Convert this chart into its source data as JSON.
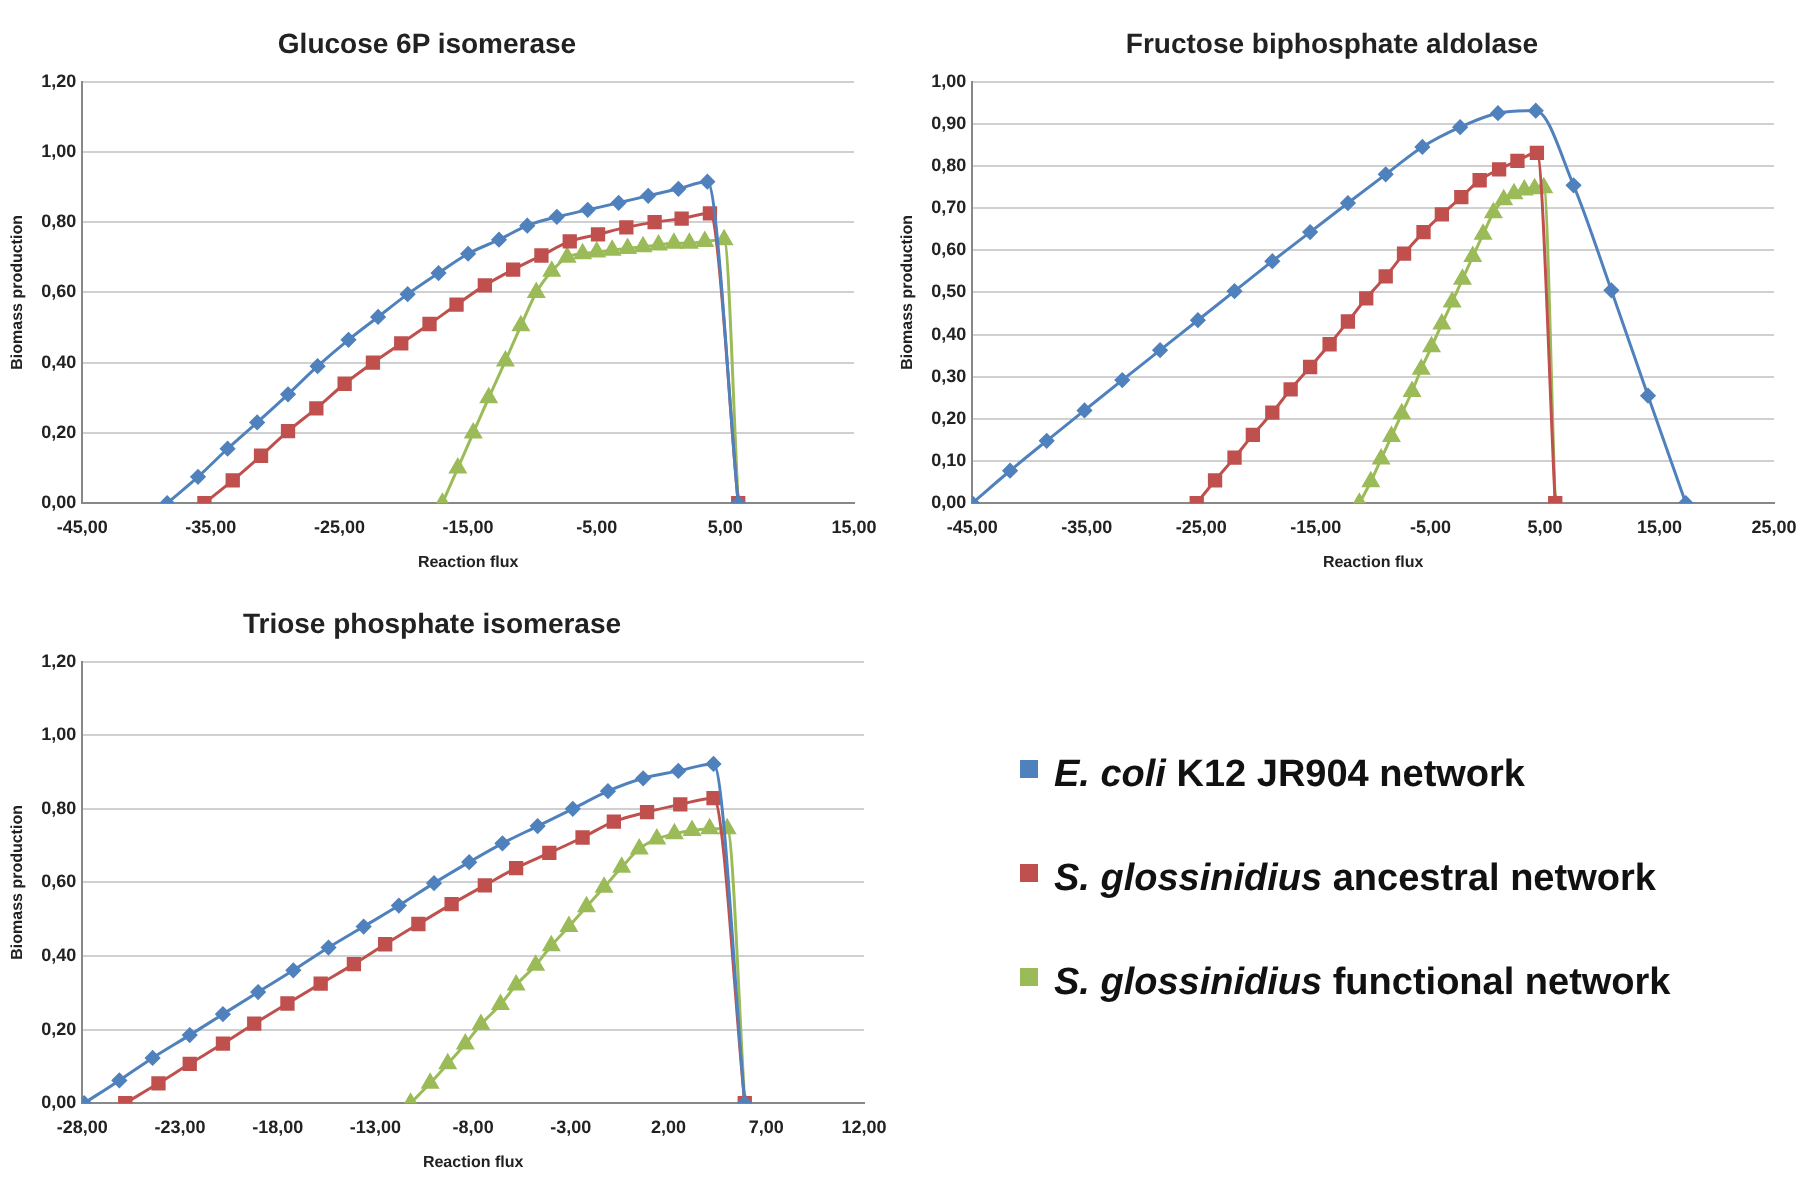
{
  "chart_data": [
    {
      "type": "line",
      "title": "Glucose 6P isomerase",
      "xlabel": "Reaction flux",
      "ylabel": "Biomass production",
      "xlim": [
        -45,
        15
      ],
      "xticks": [
        {
          "value": -45,
          "label": "-45,00"
        },
        {
          "value": -35,
          "label": "-35,00"
        },
        {
          "value": -25,
          "label": "-25,00"
        },
        {
          "value": -15,
          "label": "-15,00"
        },
        {
          "value": -5,
          "label": "-5,00"
        },
        {
          "value": 5,
          "label": "5,00"
        },
        {
          "value": 15,
          "label": "15,00"
        }
      ],
      "ylim": [
        0,
        1.2
      ],
      "yticks": [
        {
          "value": 0,
          "label": "0,00"
        },
        {
          "value": 0.2,
          "label": "0,20"
        },
        {
          "value": 0.4,
          "label": "0,40"
        },
        {
          "value": 0.6,
          "label": "0,60"
        },
        {
          "value": 0.8,
          "label": "0,80"
        },
        {
          "value": 1,
          "label": "1,00"
        },
        {
          "value": 1.2,
          "label": "1,20"
        }
      ],
      "grid": "y",
      "line_style": "solid",
      "series": [
        {
          "color": "#4f81bd",
          "marker": "diamond",
          "x": [
            -38.4,
            -36.0,
            -33.7,
            -31.4,
            -29.0,
            -26.7,
            -24.3,
            -22.0,
            -19.7,
            -17.3,
            -15.0,
            -12.6,
            -10.4,
            -8.1,
            -5.7,
            -3.3,
            -1.0,
            1.35,
            3.6,
            6.0
          ],
          "values": [
            0,
            0.075,
            0.155,
            0.23,
            0.31,
            0.39,
            0.465,
            0.53,
            0.595,
            0.655,
            0.71,
            0.75,
            0.79,
            0.815,
            0.835,
            0.855,
            0.875,
            0.895,
            0.915,
            0
          ]
        },
        {
          "color": "#c0504d",
          "marker": "square",
          "x": [
            -35.5,
            -33.3,
            -31.1,
            -29.0,
            -26.8,
            -24.6,
            -22.4,
            -20.2,
            -18.0,
            -15.9,
            -13.7,
            -11.5,
            -9.3,
            -7.1,
            -4.9,
            -2.7,
            -0.5,
            1.6,
            3.8,
            6.0
          ],
          "values": [
            0,
            0.065,
            0.135,
            0.205,
            0.27,
            0.34,
            0.4,
            0.455,
            0.51,
            0.565,
            0.62,
            0.665,
            0.705,
            0.745,
            0.765,
            0.785,
            0.8,
            0.81,
            0.825,
            0
          ]
        },
        {
          "color": "#9bbb59",
          "marker": "triangle",
          "x": [
            -17.0,
            -15.8,
            -14.6,
            -13.4,
            -12.1,
            -10.9,
            -9.7,
            -8.5,
            -7.3,
            -6.1,
            -5.0,
            -3.8,
            -2.6,
            -1.4,
            -0.2,
            1.0,
            2.2,
            3.4,
            4.9,
            6.0
          ],
          "values": [
            0,
            0.1,
            0.2,
            0.3,
            0.405,
            0.505,
            0.6,
            0.66,
            0.7,
            0.71,
            0.715,
            0.72,
            0.725,
            0.73,
            0.735,
            0.74,
            0.74,
            0.745,
            0.75,
            0
          ]
        }
      ]
    },
    {
      "type": "line",
      "title": "Fructose biphosphate aldolase",
      "xlabel": "Reaction flux",
      "ylabel": "Biomass production",
      "xlim": [
        -45,
        25
      ],
      "xticks": [
        {
          "value": -45,
          "label": "-45,00"
        },
        {
          "value": -35,
          "label": "-35,00"
        },
        {
          "value": -25,
          "label": "-25,00"
        },
        {
          "value": -15,
          "label": "-15,00"
        },
        {
          "value": -5,
          "label": "-5,00"
        },
        {
          "value": 5,
          "label": "5,00"
        },
        {
          "value": 15,
          "label": "15,00"
        },
        {
          "value": 25,
          "label": "25,00"
        }
      ],
      "ylim": [
        0,
        1
      ],
      "yticks": [
        {
          "value": 0,
          "label": "0,00"
        },
        {
          "value": 0.1,
          "label": "0,10"
        },
        {
          "value": 0.2,
          "label": "0,20"
        },
        {
          "value": 0.3,
          "label": "0,30"
        },
        {
          "value": 0.4,
          "label": "0,40"
        },
        {
          "value": 0.5,
          "label": "0,50"
        },
        {
          "value": 0.6,
          "label": "0,60"
        },
        {
          "value": 0.7,
          "label": "0,70"
        },
        {
          "value": 0.8,
          "label": "0,80"
        },
        {
          "value": 0.9,
          "label": "0,90"
        },
        {
          "value": 1,
          "label": "1,00"
        }
      ],
      "grid": "y",
      "line_style": "solid",
      "series": [
        {
          "color": "#4f81bd",
          "marker": "diamond",
          "x": [
            -45,
            -41.7,
            -38.5,
            -35.2,
            -31.9,
            -28.6,
            -25.3,
            -22.1,
            -18.8,
            -15.5,
            -12.2,
            -8.9,
            -5.7,
            -2.4,
            0.9,
            4.2,
            7.5,
            10.8,
            14.0,
            17.3
          ],
          "values": [
            0,
            0.077,
            0.148,
            0.22,
            0.292,
            0.363,
            0.434,
            0.503,
            0.574,
            0.643,
            0.712,
            0.78,
            0.845,
            0.892,
            0.925,
            0.931,
            0.754,
            0.505,
            0.255,
            0
          ]
        },
        {
          "color": "#c0504d",
          "marker": "square",
          "x": [
            -25.4,
            -23.8,
            -22.1,
            -20.5,
            -18.8,
            -17.2,
            -15.5,
            -13.8,
            -12.2,
            -10.6,
            -8.9,
            -7.3,
            -5.6,
            -4.0,
            -2.3,
            -0.7,
            1.0,
            2.6,
            4.3,
            5.9
          ],
          "values": [
            0,
            0.054,
            0.108,
            0.162,
            0.215,
            0.27,
            0.323,
            0.377,
            0.431,
            0.486,
            0.538,
            0.592,
            0.643,
            0.685,
            0.726,
            0.766,
            0.792,
            0.812,
            0.831,
            0
          ]
        },
        {
          "color": "#9bbb59",
          "marker": "triangle",
          "x": [
            -11.2,
            -10.2,
            -9.3,
            -8.4,
            -7.5,
            -6.6,
            -5.8,
            -4.9,
            -4.0,
            -3.1,
            -2.2,
            -1.3,
            -0.4,
            0.5,
            1.4,
            2.3,
            3.2,
            4.1,
            4.9,
            5.9
          ],
          "values": [
            0,
            0.051,
            0.105,
            0.158,
            0.212,
            0.265,
            0.318,
            0.371,
            0.425,
            0.477,
            0.531,
            0.585,
            0.638,
            0.689,
            0.72,
            0.734,
            0.743,
            0.746,
            0.748,
            0
          ]
        }
      ]
    },
    {
      "type": "line",
      "title": "Triose phosphate isomerase",
      "xlabel": "Reaction flux",
      "ylabel": "Biomass production",
      "xlim": [
        -28,
        12
      ],
      "xticks": [
        {
          "value": -28,
          "label": "-28,00"
        },
        {
          "value": -23,
          "label": "-23,00"
        },
        {
          "value": -18,
          "label": "-18,00"
        },
        {
          "value": -13,
          "label": "-13,00"
        },
        {
          "value": -8,
          "label": "-8,00"
        },
        {
          "value": -3,
          "label": "-3,00"
        },
        {
          "value": 2,
          "label": "2,00"
        },
        {
          "value": 7,
          "label": "7,00"
        },
        {
          "value": 12,
          "label": "12,00"
        }
      ],
      "ylim": [
        0,
        1.2
      ],
      "yticks": [
        {
          "value": 0,
          "label": "0,00"
        },
        {
          "value": 0.2,
          "label": "0,20"
        },
        {
          "value": 0.4,
          "label": "0,40"
        },
        {
          "value": 0.6,
          "label": "0,60"
        },
        {
          "value": 0.8,
          "label": "0,80"
        },
        {
          "value": 1,
          "label": "1,00"
        },
        {
          "value": 1.2,
          "label": "1,20"
        }
      ],
      "grid": "y",
      "line_style": "solid",
      "legend": "right",
      "series": [
        {
          "name": "E. coli K12 JR904 network",
          "color": "#4f81bd",
          "marker": "diamond",
          "x": [
            -27.9,
            -26.1,
            -24.4,
            -22.5,
            -20.8,
            -19.0,
            -17.2,
            -15.4,
            -13.6,
            -11.8,
            -10.0,
            -8.2,
            -6.5,
            -4.7,
            -2.9,
            -1.1,
            0.7,
            2.5,
            4.3,
            5.9
          ],
          "values": [
            0,
            0.062,
            0.123,
            0.185,
            0.242,
            0.302,
            0.361,
            0.423,
            0.48,
            0.537,
            0.598,
            0.655,
            0.706,
            0.753,
            0.8,
            0.848,
            0.883,
            0.903,
            0.922,
            0
          ]
        },
        {
          "name": "S. glossinidius ancestral network",
          "color": "#c0504d",
          "marker": "square",
          "x": [
            -25.8,
            -24.1,
            -22.5,
            -20.8,
            -19.2,
            -17.5,
            -15.8,
            -14.1,
            -12.5,
            -10.8,
            -9.1,
            -7.4,
            -5.8,
            -4.1,
            -2.4,
            -0.8,
            0.9,
            2.6,
            4.3,
            5.9
          ],
          "values": [
            0,
            0.054,
            0.107,
            0.162,
            0.216,
            0.271,
            0.325,
            0.378,
            0.432,
            0.487,
            0.541,
            0.592,
            0.639,
            0.68,
            0.722,
            0.765,
            0.791,
            0.812,
            0.829,
            0
          ]
        },
        {
          "name": "S. glossinidius functional network",
          "color": "#9bbb59",
          "marker": "triangle",
          "x": [
            -11.2,
            -10.2,
            -9.3,
            -8.4,
            -7.6,
            -6.6,
            -5.8,
            -4.8,
            -4.0,
            -3.1,
            -2.2,
            -1.3,
            -0.4,
            0.5,
            1.4,
            2.3,
            3.2,
            4.1,
            5.0,
            5.9
          ],
          "values": [
            0,
            0.054,
            0.107,
            0.161,
            0.214,
            0.268,
            0.321,
            0.375,
            0.428,
            0.48,
            0.534,
            0.587,
            0.641,
            0.691,
            0.718,
            0.732,
            0.741,
            0.746,
            0.746,
            0
          ]
        }
      ]
    }
  ]
}
